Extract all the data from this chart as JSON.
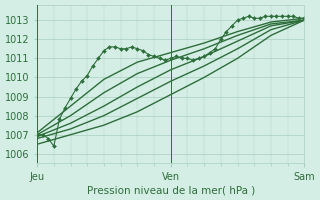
{
  "title": "",
  "xlabel": "Pression niveau de la mer( hPa )",
  "background_color": "#d4eee6",
  "grid_color": "#aacfc0",
  "line_color": "#2d6e3a",
  "tick_label_color": "#2d6e3a",
  "ylim": [
    1005.5,
    1013.8
  ],
  "yticks": [
    1006,
    1007,
    1008,
    1009,
    1010,
    1011,
    1012,
    1013
  ],
  "day_labels": [
    "Jeu",
    "Ven",
    "Sam"
  ],
  "day_positions": [
    0,
    24,
    48
  ],
  "lines": [
    {
      "x": [
        0,
        1,
        2,
        3,
        4,
        5,
        6,
        7,
        8,
        9,
        10,
        11,
        12,
        13,
        14,
        15,
        16,
        17,
        18,
        19,
        20,
        21,
        22,
        23,
        24,
        25,
        26,
        27,
        28,
        29,
        30,
        31,
        32,
        33,
        34,
        35,
        36,
        37,
        38,
        39,
        40,
        41,
        42,
        43,
        44,
        45,
        46,
        47,
        48
      ],
      "y": [
        1007.0,
        1007.0,
        1006.8,
        1006.4,
        1007.8,
        1008.4,
        1008.9,
        1009.4,
        1009.8,
        1010.1,
        1010.6,
        1011.0,
        1011.4,
        1011.6,
        1011.6,
        1011.5,
        1011.5,
        1011.6,
        1011.5,
        1011.4,
        1011.2,
        1011.1,
        1011.0,
        1010.9,
        1011.0,
        1011.1,
        1011.0,
        1011.0,
        1010.9,
        1011.0,
        1011.1,
        1011.3,
        1011.5,
        1012.0,
        1012.4,
        1012.7,
        1013.0,
        1013.1,
        1013.2,
        1013.1,
        1013.1,
        1013.2,
        1013.2,
        1013.2,
        1013.2,
        1013.2,
        1013.2,
        1013.1,
        1013.1
      ],
      "marker": "D",
      "markersize": 2.0,
      "linewidth": 0.8
    },
    {
      "x": [
        0,
        6,
        12,
        18,
        24,
        30,
        36,
        42,
        48
      ],
      "y": [
        1007.1,
        1008.5,
        1009.9,
        1010.8,
        1011.3,
        1011.8,
        1012.4,
        1012.9,
        1013.1
      ],
      "marker": null,
      "linewidth": 1.0
    },
    {
      "x": [
        0,
        6,
        12,
        18,
        24,
        30,
        36,
        42,
        48
      ],
      "y": [
        1007.0,
        1008.0,
        1009.2,
        1010.2,
        1010.9,
        1011.5,
        1012.2,
        1012.8,
        1013.0
      ],
      "marker": null,
      "linewidth": 1.0
    },
    {
      "x": [
        0,
        6,
        12,
        18,
        24,
        30,
        36,
        42,
        48
      ],
      "y": [
        1006.9,
        1007.6,
        1008.5,
        1009.5,
        1010.4,
        1011.1,
        1011.9,
        1012.7,
        1013.0
      ],
      "marker": null,
      "linewidth": 1.0
    },
    {
      "x": [
        0,
        6,
        12,
        18,
        24,
        30,
        36,
        42,
        48
      ],
      "y": [
        1006.8,
        1007.3,
        1008.0,
        1008.9,
        1009.8,
        1010.6,
        1011.5,
        1012.5,
        1013.0
      ],
      "marker": null,
      "linewidth": 1.0
    },
    {
      "x": [
        0,
        6,
        12,
        18,
        24,
        30,
        36,
        42,
        48
      ],
      "y": [
        1006.5,
        1007.0,
        1007.5,
        1008.2,
        1009.1,
        1010.0,
        1011.0,
        1012.2,
        1013.0
      ],
      "marker": null,
      "linewidth": 1.0
    }
  ]
}
